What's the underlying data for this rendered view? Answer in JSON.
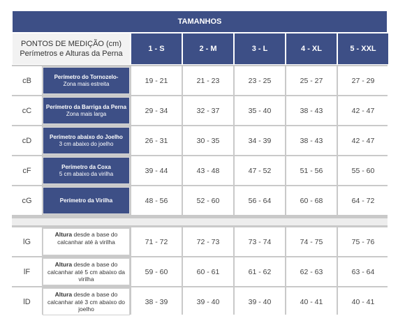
{
  "table": {
    "title": "TAMANHOS",
    "header": {
      "measure_line1": "PONTOS DE MEDIÇÃO (cm)",
      "measure_line2": "Perímetros e Alturas da Perna",
      "sizes": [
        "1 - S",
        "2 - M",
        "3 - L",
        "4 - XL",
        "5 - XXL"
      ]
    },
    "perimeter_rows": [
      {
        "code": "cB",
        "label_bold": "Perímetro do Tornozelo-",
        "label_note": "Zona mais estreita",
        "values": [
          "19 - 21",
          "21 - 23",
          "23 - 25",
          "25 - 27",
          "27 - 29"
        ]
      },
      {
        "code": "cC",
        "label_bold": "Perímetro da Barriga da Perna",
        "label_note": "Zona mais larga",
        "values": [
          "29 - 34",
          "32 - 37",
          "35 - 40",
          "38 - 43",
          "42 - 47"
        ]
      },
      {
        "code": "cD",
        "label_bold": "Perímetro abaixo do Joelho",
        "label_note": "3 cm abaixo do joelho",
        "values": [
          "26 - 31",
          "30 - 35",
          "34 - 39",
          "38 - 43",
          "42 - 47"
        ]
      },
      {
        "code": "cF",
        "label_bold": "Perímetro da Coxa",
        "label_note": "5 cm abaixo da virilha",
        "values": [
          "39 - 44",
          "43 - 48",
          "47 - 52",
          "51 - 56",
          "55 - 60"
        ]
      },
      {
        "code": "cG",
        "label_bold": "Perímetro da Virilha",
        "label_note": "",
        "values": [
          "48 - 56",
          "52 - 60",
          "56 - 64",
          "60 - 68",
          "64 - 72"
        ]
      }
    ],
    "height_rows": [
      {
        "code": "lG",
        "label_bold": "Altura",
        "label_rest": " desde a base do calcanhar até à virilha",
        "values": [
          "71 - 72",
          "72 - 73",
          "73 - 74",
          "74 - 75",
          "75 - 76"
        ]
      },
      {
        "code": "lF",
        "label_bold": "Altura",
        "label_rest": " desde a base do calcanhar até  5 cm abaixo da  virilha",
        "values": [
          "59 - 60",
          "60 - 61",
          "61 - 62",
          "62 - 63",
          "63 - 64"
        ]
      },
      {
        "code": "lD",
        "label_bold": "Altura",
        "label_rest": " desde a base do calcanhar até  3 cm abaixo do joelho",
        "values": [
          "38 - 39",
          "39 - 40",
          "39 - 40",
          "40 - 41",
          "40 - 41"
        ]
      }
    ]
  }
}
